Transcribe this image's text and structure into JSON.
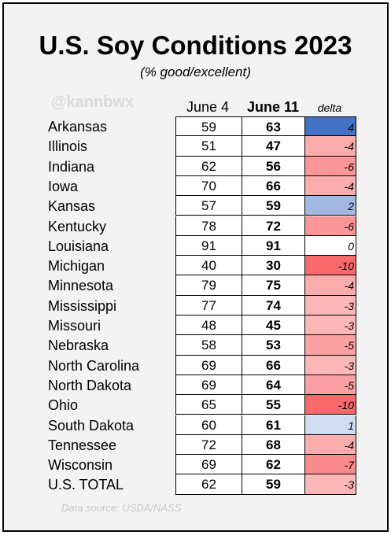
{
  "title": "U.S. Soy Conditions 2023",
  "subtitle": "(% good/excellent)",
  "watermark": "@kannbwx",
  "source": "Data source: USDA/NASS",
  "colors": {
    "positive": "#4472c4",
    "negative": "#f8696b",
    "neutral": "#ffffff"
  },
  "chart_data": {
    "type": "table",
    "title": "U.S. Soy Conditions 2023",
    "subtitle": "(% good/excellent)",
    "columns": [
      "June 4",
      "June 11",
      "delta"
    ],
    "rows": [
      {
        "state": "Arkansas",
        "june4": 59,
        "june11": 63,
        "delta": 4
      },
      {
        "state": "Illinois",
        "june4": 51,
        "june11": 47,
        "delta": -4
      },
      {
        "state": "Indiana",
        "june4": 62,
        "june11": 56,
        "delta": -6
      },
      {
        "state": "Iowa",
        "june4": 70,
        "june11": 66,
        "delta": -4
      },
      {
        "state": "Kansas",
        "june4": 57,
        "june11": 59,
        "delta": 2
      },
      {
        "state": "Kentucky",
        "june4": 78,
        "june11": 72,
        "delta": -6
      },
      {
        "state": "Louisiana",
        "june4": 91,
        "june11": 91,
        "delta": 0
      },
      {
        "state": "Michigan",
        "june4": 40,
        "june11": 30,
        "delta": -10
      },
      {
        "state": "Minnesota",
        "june4": 79,
        "june11": 75,
        "delta": -4
      },
      {
        "state": "Mississippi",
        "june4": 77,
        "june11": 74,
        "delta": -3
      },
      {
        "state": "Missouri",
        "june4": 48,
        "june11": 45,
        "delta": -3
      },
      {
        "state": "Nebraska",
        "june4": 58,
        "june11": 53,
        "delta": -5
      },
      {
        "state": "North Carolina",
        "june4": 69,
        "june11": 66,
        "delta": -3
      },
      {
        "state": "North Dakota",
        "june4": 69,
        "june11": 64,
        "delta": -5
      },
      {
        "state": "Ohio",
        "june4": 65,
        "june11": 55,
        "delta": -10
      },
      {
        "state": "South Dakota",
        "june4": 60,
        "june11": 61,
        "delta": 1
      },
      {
        "state": "Tennessee",
        "june4": 72,
        "june11": 68,
        "delta": -4
      },
      {
        "state": "Wisconsin",
        "june4": 69,
        "june11": 62,
        "delta": -7
      },
      {
        "state": "U.S. TOTAL",
        "june4": 62,
        "june11": 59,
        "delta": -3
      }
    ]
  }
}
